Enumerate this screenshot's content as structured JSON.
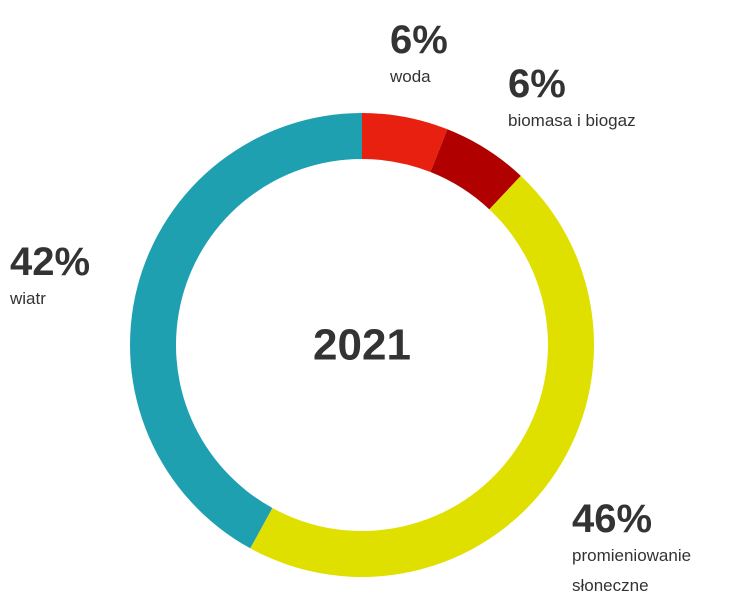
{
  "chart_data": {
    "type": "donut",
    "title": "2021",
    "categories": [
      "woda",
      "biomasa i biogaz",
      "promieniowanie słoneczne",
      "wiatr"
    ],
    "values": [
      6,
      6,
      46,
      42
    ],
    "value_labels": [
      "6%",
      "6%",
      "46%",
      "42%"
    ],
    "colors": [
      "#e8200f",
      "#b00000",
      "#e0e000",
      "#1fa0b0"
    ]
  }
}
